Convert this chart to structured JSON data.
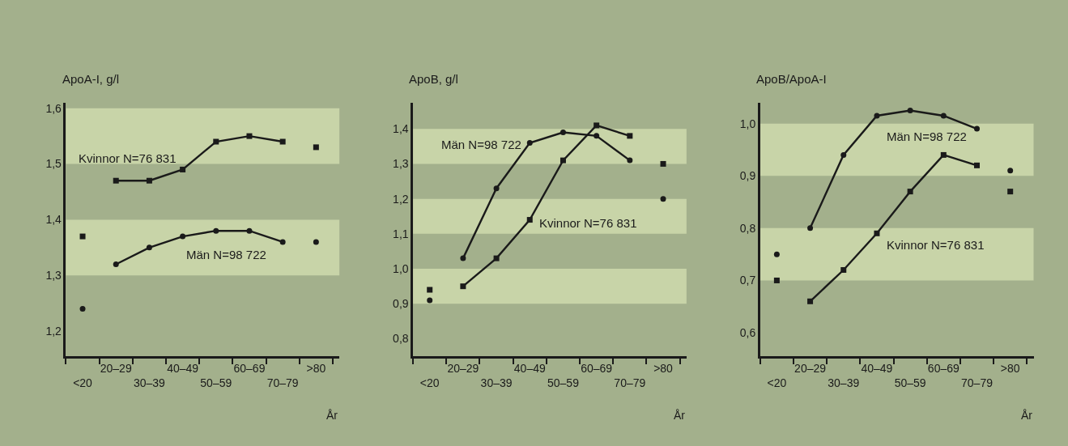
{
  "chart_data": [
    {
      "type": "line",
      "ylabel": "ApoA-I, g/l",
      "xlabel": "År",
      "categories": [
        "<20",
        "20–29",
        "30–39",
        "40–49",
        "50–59",
        "60–69",
        "70–79",
        ">80"
      ],
      "ylim": [
        1.155,
        1.61
      ],
      "yticks": [
        {
          "value": 1.2,
          "label": "1,2"
        },
        {
          "value": 1.3,
          "label": "1,3"
        },
        {
          "value": 1.4,
          "label": "1,4"
        },
        {
          "value": 1.5,
          "label": "1,5"
        },
        {
          "value": 1.6,
          "label": "1,6"
        }
      ],
      "bands": [
        {
          "axis": "y",
          "from": 1.5,
          "to": 1.6,
          "color": "#c8d4a8"
        },
        {
          "axis": "y",
          "from": 1.3,
          "to": 1.4,
          "color": "#c8d4a8"
        }
      ],
      "grid": false,
      "series": [
        {
          "name": "Kvinnor N=76 831",
          "color": "#1a1a1a",
          "marker": "square",
          "values": [
            null,
            1.47,
            1.47,
            1.49,
            1.54,
            1.55,
            1.54,
            null
          ]
        },
        {
          "type": "scatter",
          "color": "#1a1a1a",
          "marker": "square",
          "values": [
            1.37,
            null,
            null,
            null,
            null,
            null,
            null,
            1.53
          ]
        },
        {
          "name": "Män N=98 722",
          "color": "#1a1a1a",
          "marker": "circle",
          "values": [
            null,
            1.32,
            1.35,
            1.37,
            1.38,
            1.38,
            1.36,
            null
          ]
        },
        {
          "type": "scatter",
          "color": "#1a1a1a",
          "marker": "circle",
          "values": [
            1.24,
            null,
            null,
            null,
            null,
            null,
            null,
            1.36
          ]
        }
      ]
    },
    {
      "type": "line",
      "ylabel": "ApoB, g/l",
      "xlabel": "År",
      "categories": [
        "<20",
        "20–29",
        "30–39",
        "40–49",
        "50–59",
        "60–69",
        "70–79",
        ">80"
      ],
      "ylim": [
        0.75,
        1.475
      ],
      "yticks": [
        {
          "value": 0.8,
          "label": "0,8"
        },
        {
          "value": 0.9,
          "label": "0,9"
        },
        {
          "value": 1.0,
          "label": "1,0"
        },
        {
          "value": 1.1,
          "label": "1,1"
        },
        {
          "value": 1.2,
          "label": "1,2"
        },
        {
          "value": 1.3,
          "label": "1,3"
        },
        {
          "value": 1.4,
          "label": "1,4"
        }
      ],
      "bands": [
        {
          "axis": "y",
          "from": 1.3,
          "to": 1.4,
          "color": "#c8d4a8"
        },
        {
          "axis": "y",
          "from": 1.1,
          "to": 1.2,
          "color": "#c8d4a8"
        },
        {
          "axis": "y",
          "from": 0.9,
          "to": 1.0,
          "color": "#c8d4a8"
        }
      ],
      "grid": false,
      "series": [
        {
          "name": "Män N=98 722",
          "color": "#1a1a1a",
          "marker": "circle",
          "values": [
            null,
            1.03,
            1.23,
            1.36,
            1.39,
            1.38,
            1.31,
            null
          ]
        },
        {
          "type": "scatter",
          "color": "#1a1a1a",
          "marker": "circle",
          "values": [
            0.91,
            null,
            null,
            null,
            null,
            null,
            null,
            1.2
          ]
        },
        {
          "name": "Kvinnor N=76 831",
          "color": "#1a1a1a",
          "marker": "square",
          "values": [
            null,
            0.95,
            1.03,
            1.14,
            1.31,
            1.41,
            1.38,
            null
          ]
        },
        {
          "type": "scatter",
          "color": "#1a1a1a",
          "marker": "square",
          "values": [
            0.94,
            null,
            null,
            null,
            null,
            null,
            null,
            1.3
          ]
        }
      ]
    },
    {
      "type": "line",
      "ylabel": "ApoB/ApoA-I",
      "xlabel": "År",
      "categories": [
        "<20",
        "20–29",
        "30–39",
        "40–49",
        "50–59",
        "60–69",
        "70–79",
        ">80"
      ],
      "ylim": [
        0.555,
        1.04
      ],
      "yticks": [
        {
          "value": 0.6,
          "label": "0,6"
        },
        {
          "value": 0.7,
          "label": "0,7"
        },
        {
          "value": 0.8,
          "label": "0,8"
        },
        {
          "value": 0.9,
          "label": "0,9"
        },
        {
          "value": 1.0,
          "label": "1,0"
        }
      ],
      "bands": [
        {
          "axis": "y",
          "from": 0.9,
          "to": 1.0,
          "color": "#c8d4a8"
        },
        {
          "axis": "y",
          "from": 0.7,
          "to": 0.8,
          "color": "#c8d4a8"
        }
      ],
      "grid": false,
      "series": [
        {
          "name": "Män N=98 722",
          "color": "#1a1a1a",
          "marker": "circle",
          "values": [
            null,
            0.8,
            0.94,
            1.015,
            1.025,
            1.015,
            0.99,
            null
          ]
        },
        {
          "type": "scatter",
          "color": "#1a1a1a",
          "marker": "circle",
          "values": [
            0.75,
            null,
            null,
            null,
            null,
            null,
            null,
            0.91
          ]
        },
        {
          "name": "Kvinnor N=76 831",
          "color": "#1a1a1a",
          "marker": "square",
          "values": [
            null,
            0.66,
            0.72,
            0.79,
            0.87,
            0.94,
            0.92,
            null
          ]
        },
        {
          "type": "scatter",
          "color": "#1a1a1a",
          "marker": "square",
          "values": [
            0.7,
            null,
            null,
            null,
            null,
            null,
            null,
            0.87
          ]
        }
      ]
    }
  ]
}
